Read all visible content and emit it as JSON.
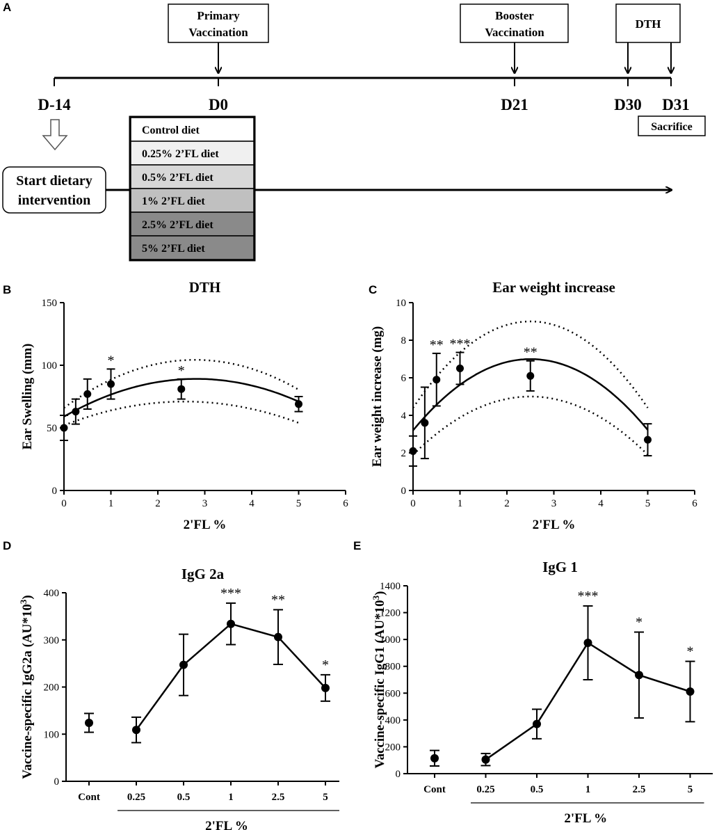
{
  "panel_labels": [
    "A",
    "B",
    "C",
    "D",
    "E"
  ],
  "timeline": {
    "days": [
      "D-14",
      "D0",
      "D21",
      "D30",
      "D31"
    ],
    "events": {
      "primary": [
        "Primary",
        "Vaccination"
      ],
      "booster": [
        "Booster",
        "Vaccination"
      ],
      "dth": "DTH",
      "sacrifice": "Sacrifice"
    },
    "start": [
      "Start dietary",
      "intervention"
    ],
    "diets": [
      "Control diet",
      "0.25% 2’FL diet",
      "0.5% 2’FL diet",
      "1% 2’FL diet",
      "2.5% 2’FL diet",
      "5% 2’FL diet"
    ],
    "diet_colors": [
      "#ffffff",
      "#f0f0f0",
      "#d8d8d8",
      "#c0c0c0",
      "#8a8a8a",
      "#8a8a8a"
    ]
  },
  "chart_data": [
    {
      "panel": "B",
      "type": "scatter",
      "title": "DTH",
      "xlabel": "2'FL %",
      "ylabel": "Ear Swelling (mm)",
      "xlim": [
        0,
        6
      ],
      "ylim": [
        0,
        150
      ],
      "xticks": [
        "0",
        "1",
        "2",
        "3",
        "4",
        "5",
        "6"
      ],
      "yticks": [
        "0",
        "50",
        "100",
        "150"
      ],
      "x": [
        0,
        0.25,
        0.5,
        1,
        2.5,
        5
      ],
      "y": [
        50,
        63,
        77,
        85,
        81,
        69
      ],
      "err": [
        10,
        10,
        12,
        12,
        8,
        6
      ],
      "annotations": [
        "",
        "",
        "",
        "*",
        "*",
        ""
      ],
      "fit": {
        "type": "quadratic",
        "coef": [
          59,
          21.4,
          -3.8
        ]
      },
      "ci_upper": {
        "coef": [
          66,
          27.4,
          -4.9
        ]
      },
      "ci_lower": {
        "coef": [
          52,
          14.8,
          -2.88
        ]
      }
    },
    {
      "panel": "C",
      "type": "scatter",
      "title": "Ear weight increase",
      "xlabel": "2'FL %",
      "ylabel": "Ear weight increase (mg)",
      "xlim": [
        0,
        6
      ],
      "ylim": [
        0,
        10
      ],
      "xticks": [
        "0",
        "1",
        "2",
        "3",
        "4",
        "5",
        "6"
      ],
      "yticks": [
        "0",
        "2",
        "4",
        "6",
        "8",
        "10"
      ],
      "x": [
        0,
        0.25,
        0.5,
        1,
        2.5,
        5
      ],
      "y": [
        2.1,
        3.6,
        5.9,
        6.5,
        6.1,
        2.7
      ],
      "err": [
        0.8,
        1.9,
        1.4,
        0.85,
        0.8,
        0.85
      ],
      "annotations": [
        "",
        "",
        "**",
        "***",
        "**",
        ""
      ],
      "fit": {
        "type": "quadratic",
        "coef": [
          3.2,
          3.03,
          -0.605
        ]
      },
      "ci_upper": {
        "coef": [
          4.4,
          3.68,
          -0.736
        ]
      },
      "ci_lower": {
        "coef": [
          1.9,
          2.48,
          -0.496
        ]
      }
    },
    {
      "panel": "D",
      "type": "line",
      "title": "IgG 2a",
      "xlabel": "2'FL %",
      "ylabel": "Vaccine-specific IgG2a (AU*10³)",
      "categories": [
        "Cont",
        "0.25",
        "0.5",
        "1",
        "2.5",
        "5"
      ],
      "ylim": [
        0,
        400
      ],
      "yticks": [
        "0",
        "100",
        "200",
        "300",
        "400"
      ],
      "values": [
        124,
        109,
        247,
        334,
        306,
        198
      ],
      "err": [
        20,
        27,
        65,
        44,
        58,
        28
      ],
      "connected_from": 1,
      "annotations": [
        "",
        "",
        "",
        "***",
        "**",
        "*"
      ]
    },
    {
      "panel": "E",
      "type": "line",
      "title": "IgG 1",
      "xlabel": "2'FL %",
      "ylabel": "Vaccine-specific IgG1 (AU*10³)",
      "categories": [
        "Cont",
        "0.25",
        "0.5",
        "1",
        "2.5",
        "5"
      ],
      "ylim": [
        0,
        1400
      ],
      "yticks": [
        "0",
        "200",
        "400",
        "600",
        "800",
        "1000",
        "1200",
        "1400"
      ],
      "values": [
        115,
        105,
        370,
        975,
        735,
        612
      ],
      "err": [
        58,
        45,
        110,
        275,
        320,
        225
      ],
      "connected_from": 1,
      "annotations": [
        "",
        "",
        "",
        "***",
        "*",
        "*"
      ]
    }
  ]
}
